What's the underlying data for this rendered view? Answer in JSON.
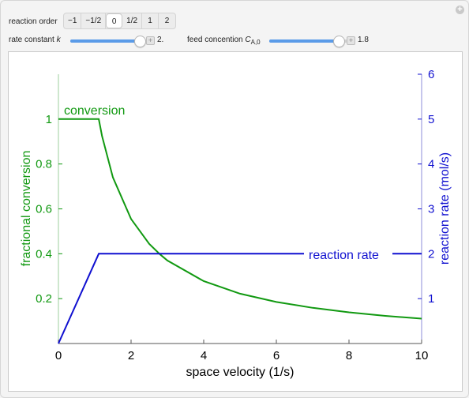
{
  "controls": {
    "reaction_order_label": "reaction order",
    "reaction_order_options": [
      "−1",
      "−1/2",
      "0",
      "1/2",
      "1",
      "2"
    ],
    "reaction_order_selected": "0",
    "rate_constant_label": "rate constant ",
    "rate_constant_var": "k",
    "rate_constant_value": "2.",
    "rate_constant_fraction": 0.86,
    "feed_label": "feed concention ",
    "feed_var": "C",
    "feed_sub": "A,0",
    "feed_value": "1.8",
    "feed_fraction": 0.86
  },
  "colors": {
    "conversion": "#119911",
    "rate": "#1010d0",
    "slider_fill": "#5a9be8"
  },
  "chart_data": {
    "type": "line",
    "xlabel": "space velocity (1/s)",
    "ylabel_left": "fractional conversion",
    "ylabel_right": "reaction rate (mol/s)",
    "xlim": [
      0,
      10
    ],
    "ylim_left": [
      0,
      1.2
    ],
    "ylim_right": [
      0,
      6
    ],
    "x_ticks": [
      "0",
      "2",
      "4",
      "6",
      "8",
      "10"
    ],
    "y_ticks_left": [
      "0.2",
      "0.4",
      "0.6",
      "0.8",
      "1"
    ],
    "y_ticks_right": [
      "1",
      "2",
      "3",
      "4",
      "5",
      "6"
    ],
    "series": [
      {
        "name": "conversion",
        "axis": "left",
        "x": [
          0,
          1.11,
          1.2,
          1.5,
          2,
          2.5,
          2.8,
          3,
          4,
          5,
          6,
          7,
          8,
          9,
          10
        ],
        "y": [
          1,
          1,
          0.925,
          0.74,
          0.555,
          0.444,
          0.397,
          0.37,
          0.278,
          0.222,
          0.185,
          0.159,
          0.139,
          0.123,
          0.111
        ]
      },
      {
        "name": "reaction rate",
        "axis": "right",
        "x": [
          0,
          1.11,
          10
        ],
        "y": [
          0,
          2,
          2
        ]
      }
    ]
  }
}
